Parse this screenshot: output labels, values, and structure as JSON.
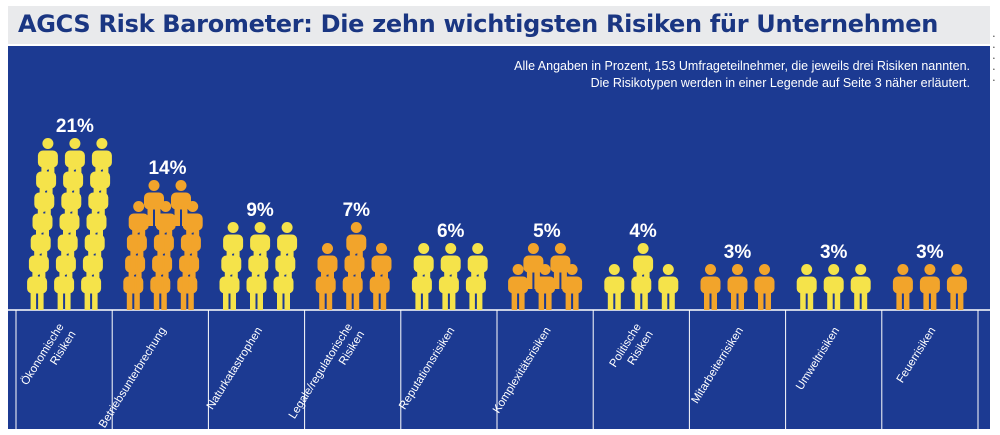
{
  "title": "AGCS Risk Barometer: Die zehn wichtigsten Risiken für Unternehmen",
  "note": {
    "line1": "Alle Angaben in Prozent, 153 Umfrageteilnehmer, die jeweils drei Risiken nannten.",
    "line2": "Die Risikotypen werden in einer Legende auf Seite 3 näher erläutert."
  },
  "colors": {
    "background": "#1c3a92",
    "title_text": "#1a3682",
    "title_bar": "#e9eaec",
    "yellow": "#f5e34a",
    "orange": "#f2a42b"
  },
  "chart_data": {
    "type": "bar",
    "title": "AGCS Risk Barometer: Die zehn wichtigsten Risiken für Unternehmen",
    "unit": "%",
    "categories": [
      "Ökonomische Risiken",
      "Betriebsunterbrechung",
      "Naturkatastrophen",
      "Legale/regulatorische Risiken",
      "Reputationsrisiken",
      "Komplexitätsrisiken",
      "Politische Risiken",
      "Mitarbeiterrisiken",
      "Umweltrisiken",
      "Feuerrisiken"
    ],
    "values": [
      21,
      14,
      9,
      7,
      6,
      5,
      4,
      3,
      3,
      3
    ],
    "value_labels": [
      "21%",
      "14%",
      "9%",
      "7%",
      "6%",
      "5%",
      "4%",
      "3%",
      "3%",
      "3%"
    ],
    "bar_colors": [
      "yellow",
      "orange",
      "yellow",
      "orange",
      "yellow",
      "orange",
      "yellow",
      "orange",
      "yellow",
      "orange"
    ],
    "marks": "stacked person pictograms, one figure per percentage point"
  }
}
